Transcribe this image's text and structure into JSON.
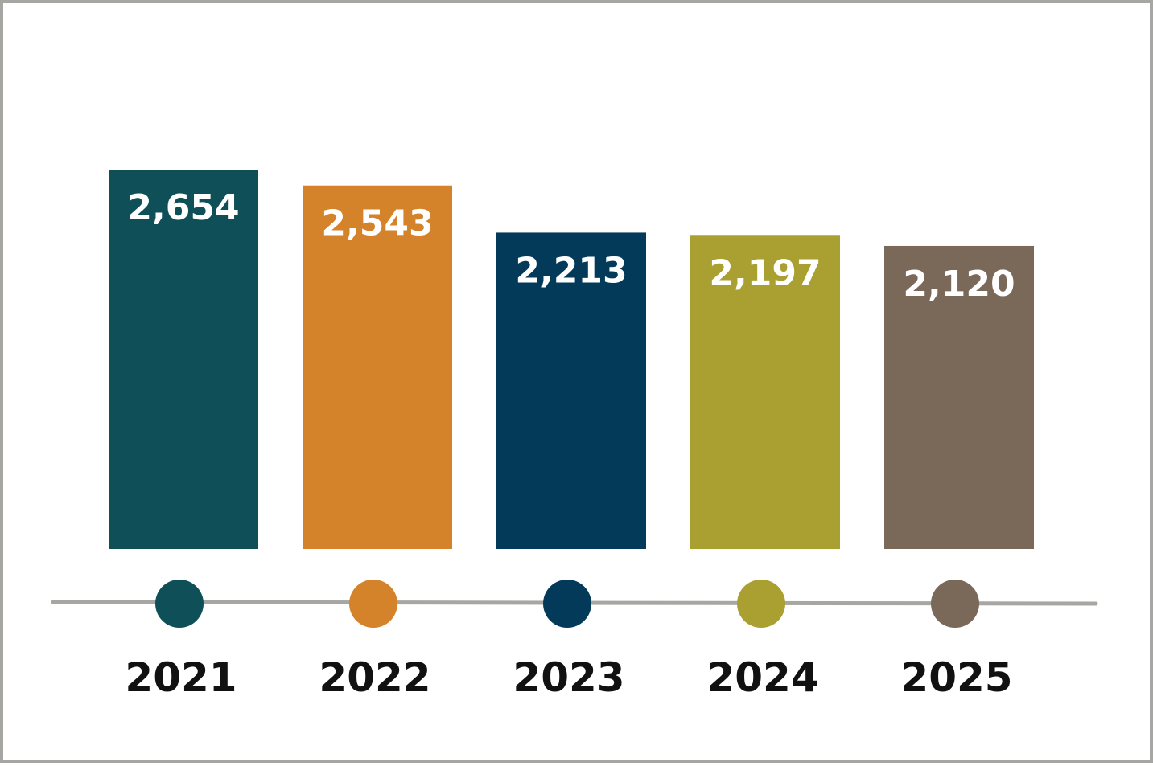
{
  "chart_data": {
    "type": "bar",
    "categories": [
      "2021",
      "2022",
      "2023",
      "2024",
      "2025"
    ],
    "values": [
      2654,
      2543,
      2213,
      2197,
      2120
    ],
    "value_labels": [
      "2,654",
      "2,543",
      "2,213",
      "2,197",
      "2,120"
    ],
    "colors": [
      "#0f5058",
      "#d4832b",
      "#033a5a",
      "#aa9f31",
      "#7a6859"
    ],
    "timeline_color": "#a6a6a3",
    "frame_color": "#a6a6a3",
    "grid": false,
    "legend": "none"
  }
}
